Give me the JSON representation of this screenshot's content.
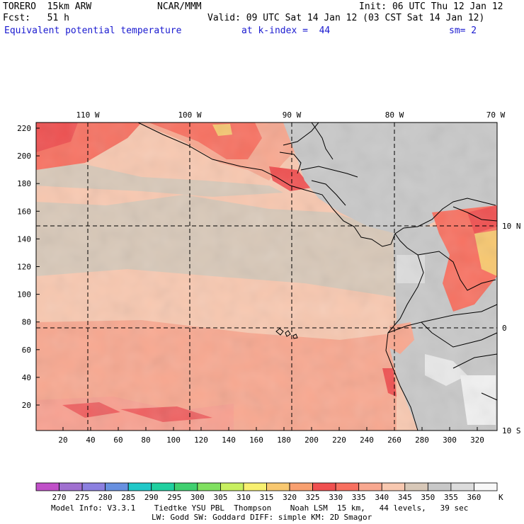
{
  "header": {
    "model": "TORERO  15km ARW",
    "center": "NCAR/MMM",
    "init": "Init: 06 UTC Thu 12 Jan 12",
    "fcst": "Fcst:   51 h",
    "valid": "Valid: 09 UTC Sat 14 Jan 12 (03 CST Sat 14 Jan 12)",
    "field": "Equivalent potential temperature",
    "level": "at k-index =  44",
    "smooth": "sm= 2"
  },
  "map": {
    "top_lon_labels": [
      "110 W",
      "100 W",
      "90 W",
      "80 W",
      "70 W"
    ],
    "right_lat_labels": [
      "10 N",
      "0",
      "10 S"
    ],
    "y_tick_labels": [
      "220",
      "200",
      "180",
      "160",
      "140",
      "120",
      "100",
      "80",
      "60",
      "40",
      "20"
    ],
    "x_tick_labels": [
      "20",
      "40",
      "60",
      "80",
      "100",
      "120",
      "140",
      "160",
      "180",
      "200",
      "220",
      "240",
      "260",
      "280",
      "300",
      "320"
    ]
  },
  "colorbar": {
    "labels": [
      "270",
      "275",
      "280",
      "285",
      "290",
      "295",
      "300",
      "305",
      "310",
      "315",
      "320",
      "325",
      "330",
      "335",
      "340",
      "345",
      "350",
      "355",
      "360"
    ],
    "unit": "K",
    "colors": [
      "#c050c8",
      "#a070d0",
      "#8c80e0",
      "#6890e0",
      "#20c8c8",
      "#20d0a0",
      "#40d070",
      "#80e060",
      "#c8f060",
      "#f8f070",
      "#f8c870",
      "#f8a070",
      "#f05050",
      "#f87060",
      "#f8a890",
      "#f8c8b0",
      "#d8c8b8",
      "#c8c8c8",
      "#dcdcdc",
      "#f8f8f8"
    ]
  },
  "footer": {
    "line1": "Model Info: V3.3.1    Tiedtke YSU PBL  Thompson    Noah LSM  15 km,   44 levels,   39 sec",
    "line2": "LW: Godd SW: Goddard DIFF: simple KM: 2D Smagor"
  }
}
